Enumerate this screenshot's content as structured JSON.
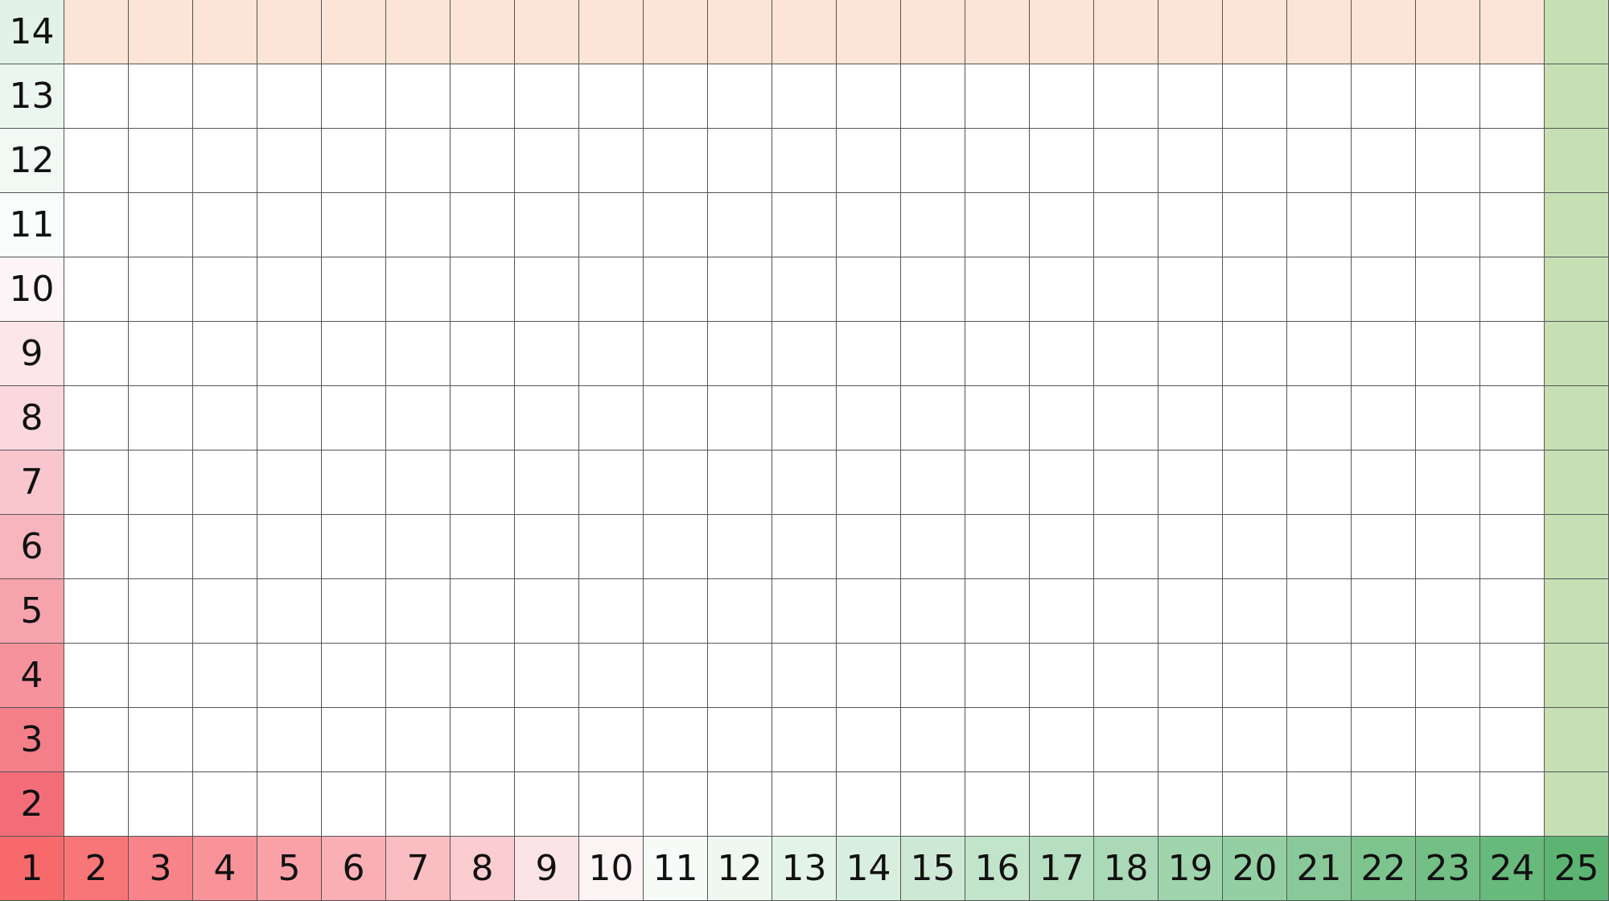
{
  "row_axis": {
    "labels": [
      "14",
      "13",
      "12",
      "11",
      "10",
      "9",
      "8",
      "7",
      "6",
      "5",
      "4",
      "3",
      "2"
    ],
    "colors": [
      "#e3f2e8",
      "#ecf6f0",
      "#f2f9f5",
      "#f8fcfa",
      "#fcf4f6",
      "#fbe6ea",
      "#fad8dd",
      "#f9c6cd",
      "#f8b5bd",
      "#f6a3ac",
      "#f5929c",
      "#f37f89",
      "#f36d78"
    ]
  },
  "column_axis": {
    "labels": [
      "1",
      "2",
      "3",
      "4",
      "5",
      "6",
      "7",
      "8",
      "9",
      "10",
      "11",
      "12",
      "13",
      "14",
      "15",
      "16",
      "17",
      "18",
      "19",
      "20",
      "21",
      "22",
      "23",
      "24",
      "25"
    ],
    "colors": [
      "#f8696b",
      "#f87678",
      "#f88389",
      "#f9939a",
      "#f9a1a7",
      "#faafb4",
      "#fabdc1",
      "#fbccd0",
      "#fbe4e7",
      "#fcf3f4",
      "#f6fbf8",
      "#eef8f1",
      "#e3f3e8",
      "#d8efdf",
      "#cde9d5",
      "#c1e4cb",
      "#b6dfc1",
      "#abd9b7",
      "#a0d4ad",
      "#94cfa3",
      "#89c999",
      "#7ec48f",
      "#73bf86",
      "#68b97c",
      "#5cb472"
    ]
  },
  "colors": {
    "top_band": "#fce4d6",
    "right_band": "#c6e0b4",
    "grid_line": "#555555",
    "empty_cell": "#ffffff"
  }
}
